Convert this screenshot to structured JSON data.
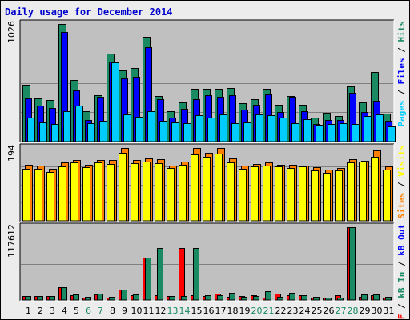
{
  "title": "Daily usage for December 2014",
  "colors": {
    "title": "#0000cc",
    "frame_bg": "#ececec",
    "panel_bg": "#c0c0c0",
    "grid": "#808080",
    "hits": "#1a8a63",
    "files": "#0000ff",
    "pages": "#00ccff",
    "sites": "#ff8000",
    "visits": "#ffff00",
    "kb_in": "#1a8a63",
    "kb_out": "#ff8000",
    "kb_f": "#ff0000",
    "day_weekday": "#000000",
    "day_weekend": "#1a8a63"
  },
  "side_labels": {
    "top": [
      {
        "text": "Pages",
        "color": "#00ccff"
      },
      {
        "text": " / ",
        "color": "#000000"
      },
      {
        "text": "Files",
        "color": "#0000ff"
      },
      {
        "text": " / ",
        "color": "#000000"
      },
      {
        "text": "Hits",
        "color": "#1a8a63"
      }
    ],
    "middle": [
      {
        "text": "Sites",
        "color": "#ff8000"
      },
      {
        "text": " / ",
        "color": "#000000"
      },
      {
        "text": "Visits",
        "color": "#ffff00"
      }
    ],
    "bottom": [
      {
        "text": "kB F",
        "color": "#ff0000"
      },
      {
        "text": " / ",
        "color": "#000000"
      },
      {
        "text": "kB In",
        "color": "#1a8a63"
      },
      {
        "text": " / ",
        "color": "#000000"
      },
      {
        "text": "kB Out",
        "color": "#0000ff"
      }
    ]
  },
  "chart_data": [
    {
      "type": "bar",
      "panel": "hits-files-pages",
      "max_label": "1026",
      "ylim": [
        0,
        1026
      ],
      "categories": [
        "1",
        "2",
        "3",
        "4",
        "5",
        "6",
        "7",
        "8",
        "9",
        "10",
        "11",
        "12",
        "13",
        "14",
        "15",
        "16",
        "17",
        "18",
        "19",
        "20",
        "21",
        "22",
        "23",
        "24",
        "25",
        "26",
        "27",
        "28",
        "29",
        "30",
        "31"
      ],
      "series": [
        {
          "name": "Hits",
          "values": [
            494,
            377,
            363,
            1026,
            540,
            262,
            403,
            766,
            619,
            641,
            916,
            398,
            262,
            343,
            463,
            458,
            462,
            468,
            334,
            372,
            458,
            319,
            400,
            319,
            211,
            250,
            226,
            481,
            343,
            605,
            243
          ]
        },
        {
          "name": "Files",
          "values": [
            377,
            312,
            292,
            955,
            448,
            191,
            388,
            695,
            552,
            564,
            822,
            367,
            209,
            286,
            369,
            405,
            394,
            406,
            278,
            319,
            409,
            255,
            391,
            263,
            156,
            191,
            190,
            427,
            261,
            358,
            180
          ]
        },
        {
          "name": "Pages",
          "values": [
            212,
            170,
            152,
            263,
            317,
            163,
            179,
            691,
            237,
            219,
            262,
            184,
            169,
            164,
            232,
            212,
            238,
            158,
            169,
            236,
            229,
            212,
            162,
            196,
            144,
            154,
            161,
            156,
            223,
            240,
            132
          ]
        }
      ]
    },
    {
      "type": "bar",
      "panel": "sites-visits",
      "max_label": "194",
      "ylim": [
        0,
        194
      ],
      "categories": [
        "1",
        "2",
        "3",
        "4",
        "5",
        "6",
        "7",
        "8",
        "9",
        "10",
        "11",
        "12",
        "13",
        "14",
        "15",
        "16",
        "17",
        "18",
        "19",
        "20",
        "21",
        "22",
        "23",
        "24",
        "25",
        "26",
        "27",
        "28",
        "29",
        "30",
        "31"
      ],
      "series": [
        {
          "name": "Sites",
          "values": [
            150,
            148,
            139,
            155,
            163,
            149,
            162,
            161,
            194,
            162,
            166,
            164,
            147,
            157,
            194,
            182,
            193,
            167,
            148,
            152,
            156,
            150,
            149,
            148,
            142,
            137,
            141,
            165,
            159,
            188,
            144
          ]
        },
        {
          "name": "Visits",
          "values": [
            139,
            139,
            131,
            144,
            155,
            142,
            156,
            151,
            181,
            154,
            158,
            154,
            140,
            149,
            177,
            170,
            179,
            156,
            138,
            146,
            148,
            144,
            141,
            144,
            134,
            127,
            134,
            155,
            157,
            171,
            136
          ]
        }
      ]
    },
    {
      "type": "bar",
      "panel": "kb",
      "max_label": "117612",
      "ylim": [
        0,
        117612
      ],
      "categories": [
        "1",
        "2",
        "3",
        "4",
        "5",
        "6",
        "7",
        "8",
        "9",
        "10",
        "11",
        "12",
        "13",
        "14",
        "15",
        "16",
        "17",
        "18",
        "19",
        "20",
        "21",
        "22",
        "23",
        "24",
        "25",
        "26",
        "27",
        "28",
        "29",
        "30",
        "31"
      ],
      "series": [
        {
          "name": "kB F",
          "values": [
            7000,
            6400,
            6900,
            21300,
            7200,
            4400,
            9400,
            4300,
            16900,
            8400,
            68500,
            8300,
            6000,
            83500,
            7200,
            6900,
            10800,
            5500,
            7000,
            8300,
            4000,
            10800,
            7600,
            7900,
            4300,
            4000,
            7200,
            117612,
            5700,
            8300,
            4300
          ]
        },
        {
          "name": "kB In",
          "values": [
            7100,
            6500,
            7000,
            21000,
            8900,
            4800,
            10000,
            4600,
            17300,
            8700,
            68500,
            84500,
            6300,
            6600,
            83500,
            7700,
            7500,
            11200,
            5800,
            6600,
            13700,
            5100,
            11500,
            7700,
            5400,
            4400,
            4400,
            117612,
            8900,
            8500,
            4700
          ]
        }
      ]
    }
  ]
}
